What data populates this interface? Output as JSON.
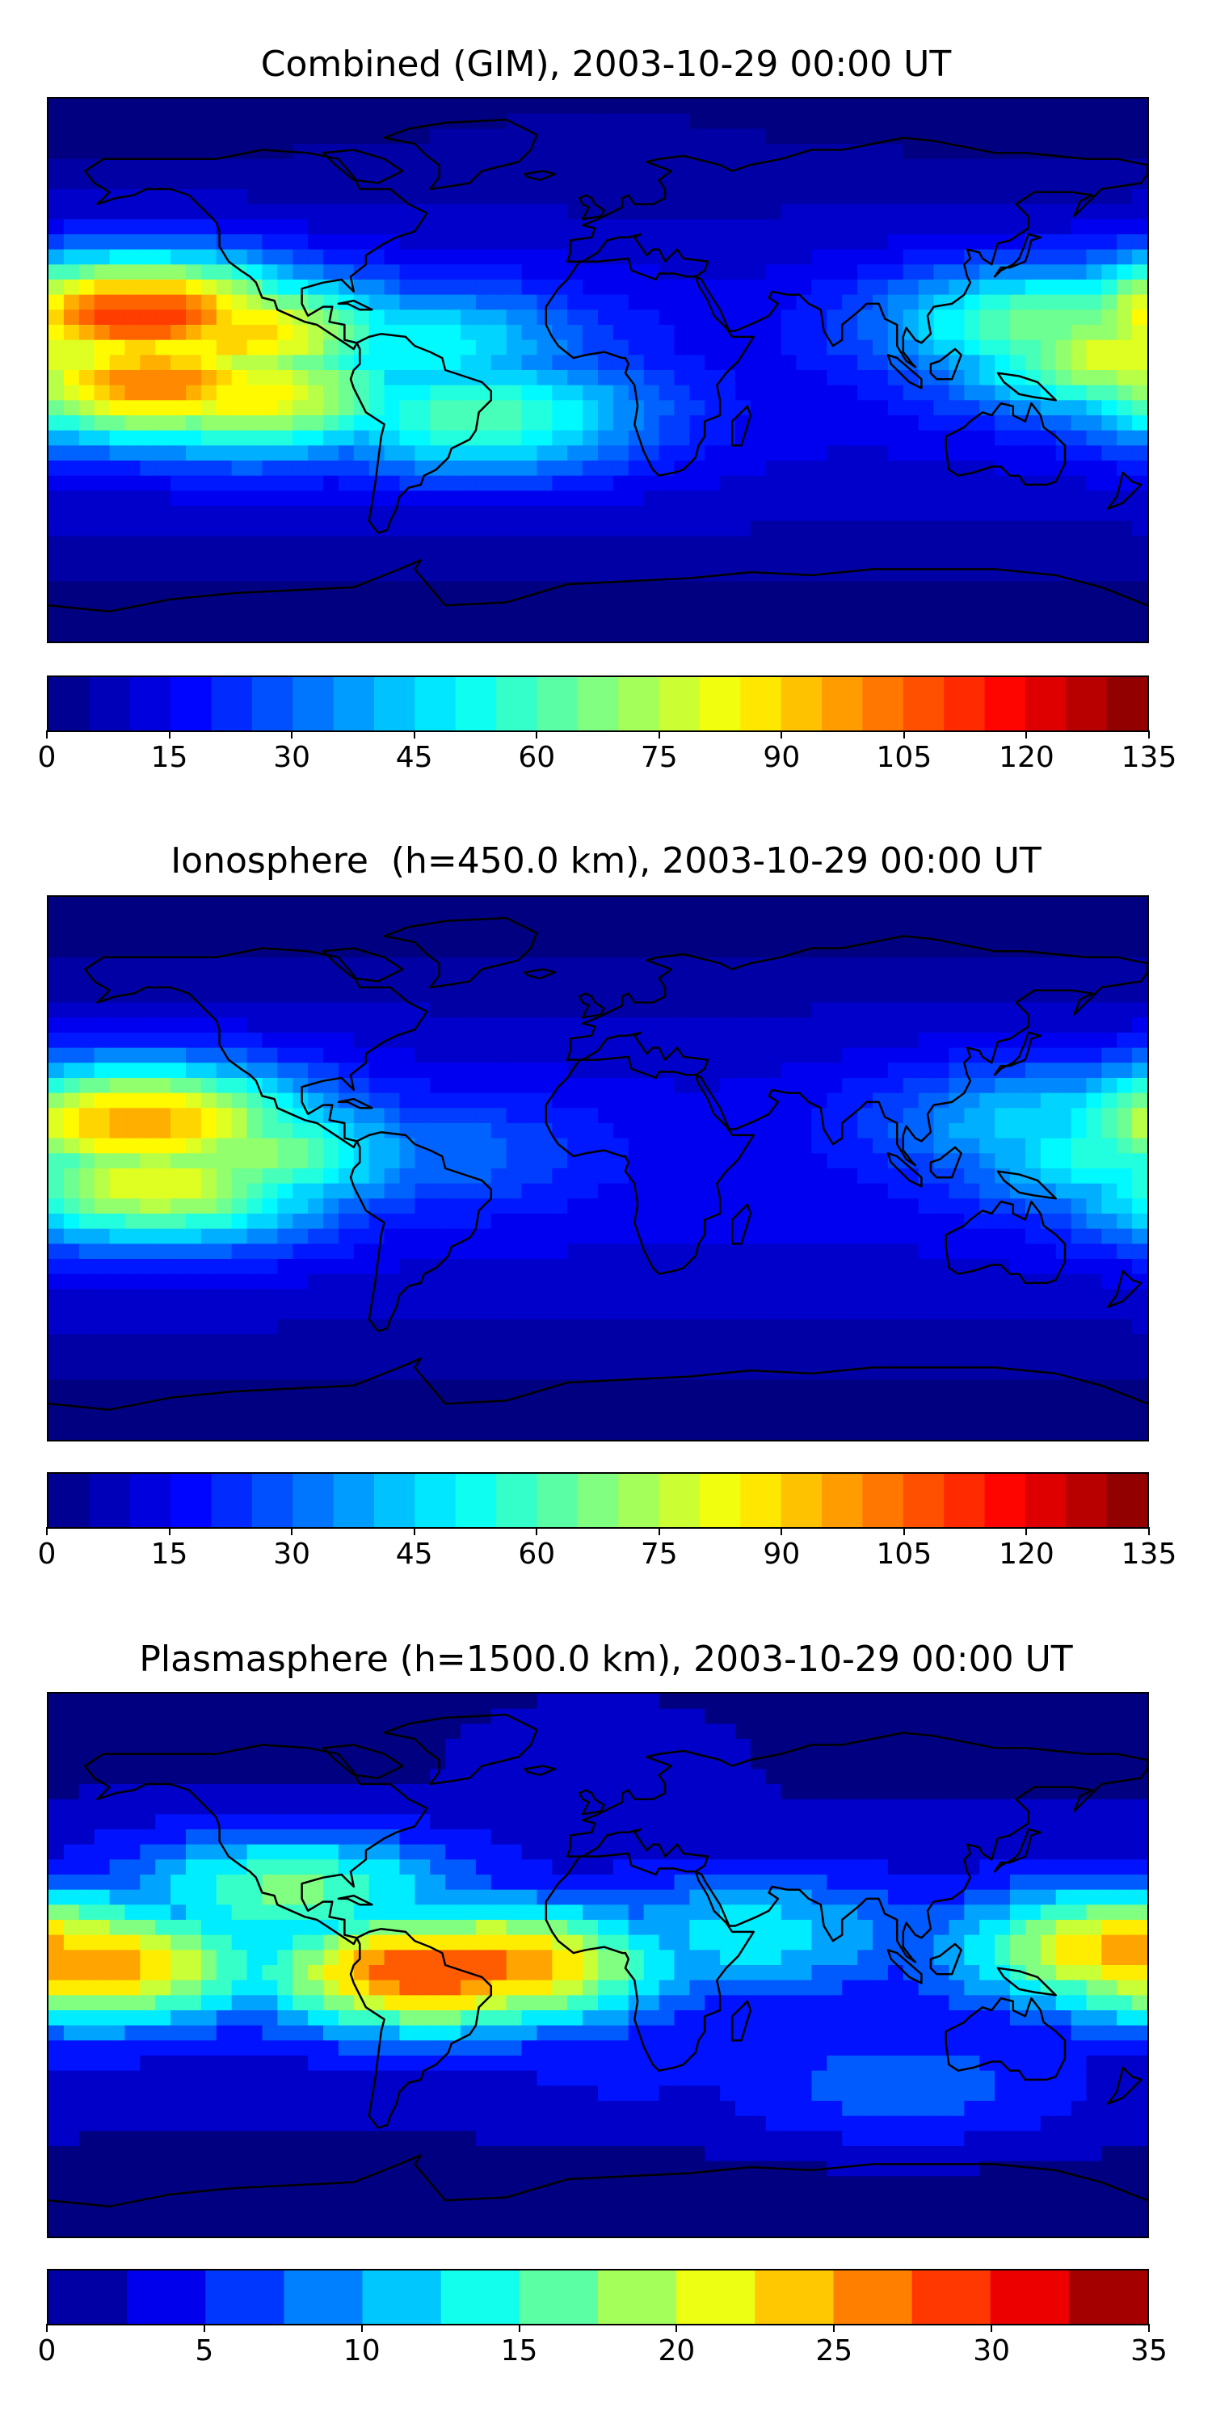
{
  "panels": [
    {
      "title": "Combined (GIM), 2003-10-29 00:00 UT",
      "colorbar_ticks": [
        "0",
        "15",
        "30",
        "45",
        "60",
        "75",
        "90",
        "105",
        "120",
        "135"
      ]
    },
    {
      "title": "Ionosphere  (h=450.0 km), 2003-10-29 00:00 UT",
      "colorbar_ticks": [
        "0",
        "15",
        "30",
        "45",
        "60",
        "75",
        "90",
        "105",
        "120",
        "135"
      ]
    },
    {
      "title": "Plasmasphere (h=1500.0 km), 2003-10-29 00:00 UT",
      "colorbar_ticks": [
        "0",
        "5",
        "10",
        "15",
        "20",
        "25",
        "30",
        "35"
      ]
    }
  ],
  "chart_data": [
    {
      "type": "heatmap",
      "title": "Combined (GIM), 2003-10-29 00:00 UT",
      "colorbar": {
        "min": 0,
        "max": 135,
        "step": 5,
        "ticks": [
          0,
          15,
          30,
          45,
          60,
          75,
          90,
          105,
          120,
          135
        ]
      },
      "colormap": "jet",
      "features": [
        {
          "lon": -150,
          "lat": 18,
          "value": 115
        },
        {
          "lon": -145,
          "lat": -4,
          "value": 105
        },
        {
          "lon": -120,
          "lat": 12,
          "value": 95
        },
        {
          "lon": -115,
          "lat": -8,
          "value": 90
        },
        {
          "lon": -60,
          "lat": 8,
          "value": 55
        },
        {
          "lon": -40,
          "lat": -15,
          "value": 65
        },
        {
          "lon": 175,
          "lat": 5,
          "value": 85
        },
        {
          "lon": 150,
          "lat": 15,
          "value": 70
        },
        {
          "lon": 30,
          "lat": 0,
          "value": 20
        },
        {
          "lon": 0,
          "lat": 70,
          "value": 8
        }
      ]
    },
    {
      "type": "heatmap",
      "title": "Ionosphere  (h=450.0 km), 2003-10-29 00:00 UT",
      "colorbar": {
        "min": 0,
        "max": 135,
        "step": 5,
        "ticks": [
          0,
          15,
          30,
          45,
          60,
          75,
          90,
          105,
          120,
          135
        ]
      },
      "colormap": "jet",
      "features": [
        {
          "lon": -150,
          "lat": 15,
          "value": 100
        },
        {
          "lon": -145,
          "lat": -5,
          "value": 85
        },
        {
          "lon": -120,
          "lat": 5,
          "value": 75
        },
        {
          "lon": 175,
          "lat": 5,
          "value": 60
        },
        {
          "lon": 150,
          "lat": 15,
          "value": 50
        },
        {
          "lon": -60,
          "lat": 5,
          "value": 35
        },
        {
          "lon": 0,
          "lat": 70,
          "value": 5
        }
      ]
    },
    {
      "type": "heatmap",
      "title": "Plasmasphere (h=1500.0 km), 2003-10-29 00:00 UT",
      "colorbar": {
        "min": 0,
        "max": 35,
        "step": 2.5,
        "ticks": [
          0,
          5,
          10,
          15,
          20,
          25,
          30,
          35
        ]
      },
      "colormap": "jet",
      "features": [
        {
          "lon": -165,
          "lat": 0,
          "value": 27
        },
        {
          "lon": -55,
          "lat": -2,
          "value": 30
        },
        {
          "lon": -35,
          "lat": 0,
          "value": 28
        },
        {
          "lon": 175,
          "lat": 5,
          "value": 26
        },
        {
          "lon": -100,
          "lat": 25,
          "value": 18
        },
        {
          "lon": 50,
          "lat": 10,
          "value": 14
        },
        {
          "lon": 10,
          "lat": -30,
          "value": 6
        },
        {
          "lon": 0,
          "lat": 75,
          "value": 4
        },
        {
          "lon": 100,
          "lat": -40,
          "value": 9
        }
      ]
    }
  ]
}
